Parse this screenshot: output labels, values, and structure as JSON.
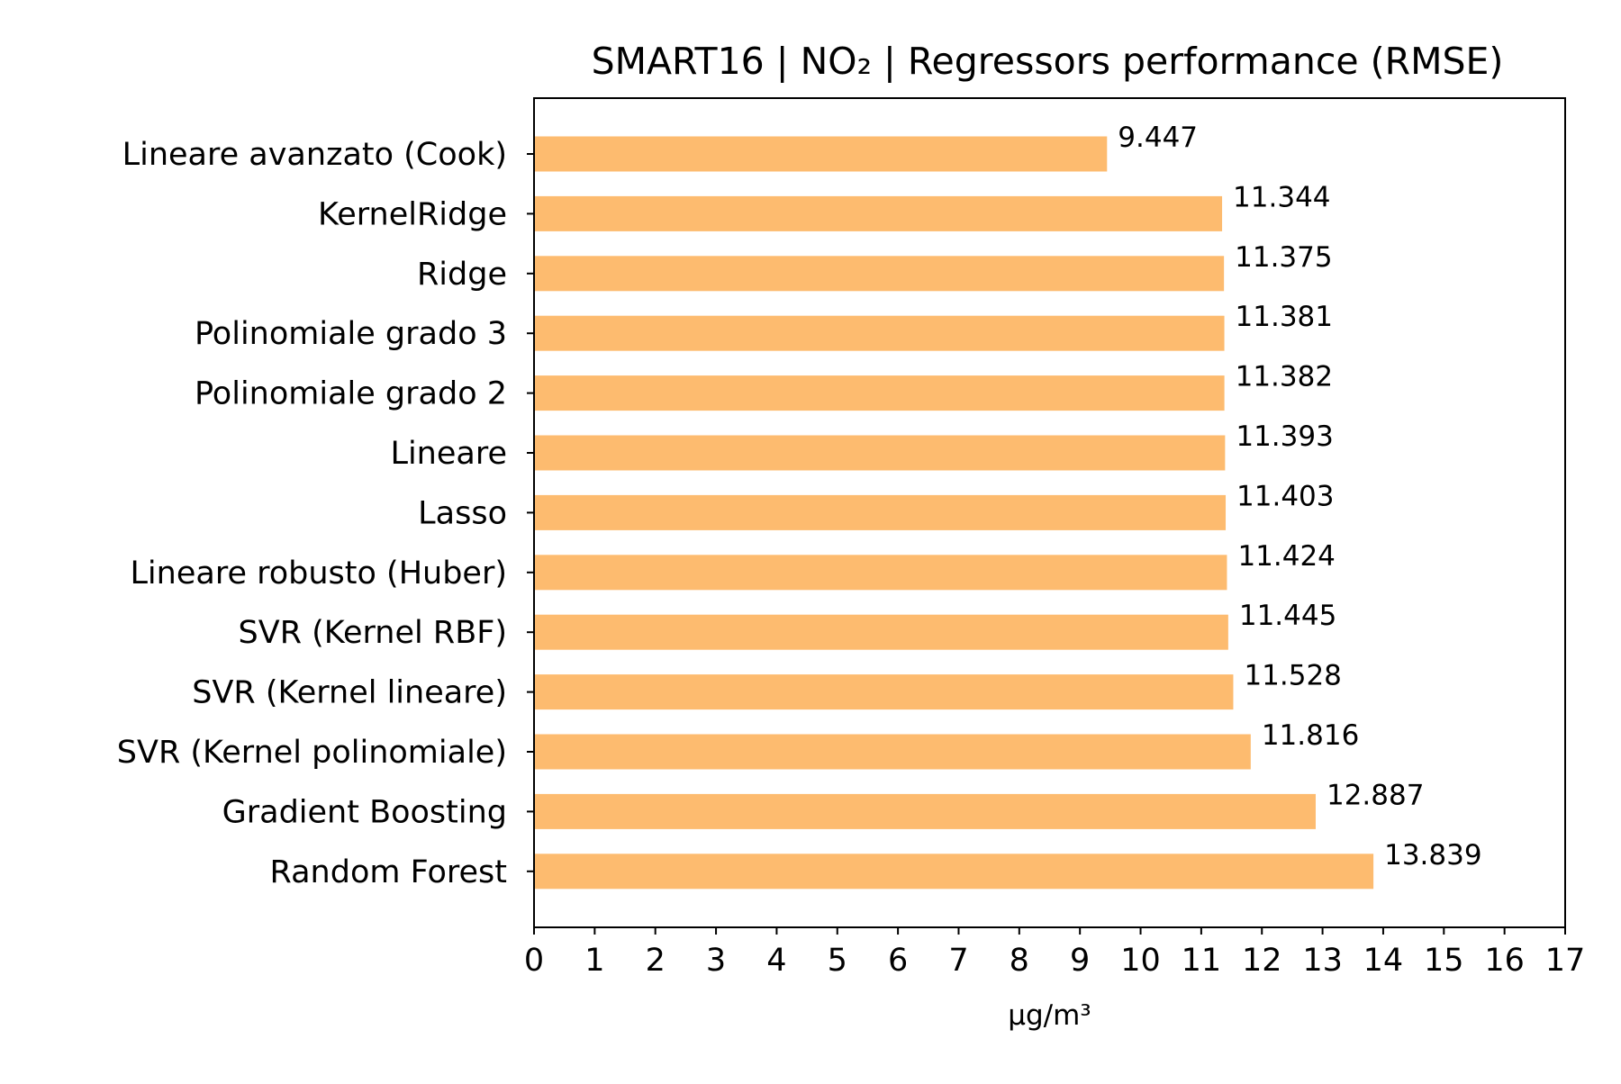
{
  "chart_data": {
    "type": "bar",
    "orientation": "horizontal",
    "title": "SMART16 | NO₂ | Regressors performance (RMSE)",
    "xlabel": "µg/m³",
    "ylabel": "",
    "xlim": [
      0,
      17
    ],
    "xticks": [
      "0",
      "1",
      "2",
      "3",
      "4",
      "5",
      "6",
      "7",
      "8",
      "9",
      "10",
      "11",
      "12",
      "13",
      "14",
      "15",
      "16",
      "17"
    ],
    "categories": [
      "Lineare avanzato (Cook)",
      "KernelRidge",
      "Ridge",
      "Polinomiale grado 3",
      "Polinomiale grado 2",
      "Lineare",
      "Lasso",
      "Lineare robusto (Huber)",
      "SVR (Kernel RBF)",
      "SVR (Kernel lineare)",
      "SVR (Kernel polinomiale)",
      "Gradient Boosting",
      "Random Forest"
    ],
    "values": [
      9.447,
      11.344,
      11.375,
      11.381,
      11.382,
      11.393,
      11.403,
      11.424,
      11.445,
      11.528,
      11.816,
      12.887,
      13.839
    ],
    "value_labels": [
      "9.447",
      "11.344",
      "11.375",
      "11.381",
      "11.382",
      "11.393",
      "11.403",
      "11.424",
      "11.445",
      "11.528",
      "11.816",
      "12.887",
      "13.839"
    ],
    "bar_color": "#fdbb6f",
    "grid": false,
    "legend": "none"
  }
}
